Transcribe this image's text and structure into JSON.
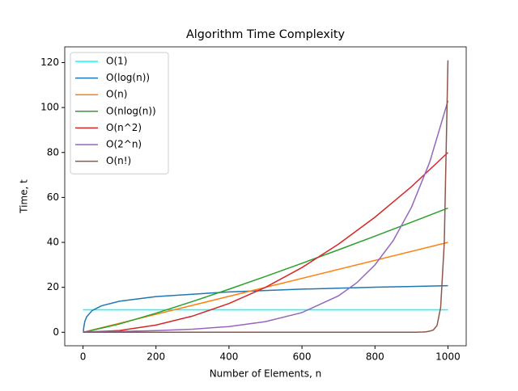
{
  "chart_data": {
    "type": "line",
    "title": "Algorithm Time Complexity",
    "x_label": "Number of Elements, n",
    "y_label": "Time, t",
    "xlim": [
      -50,
      1050
    ],
    "ylim": [
      -6,
      127
    ],
    "xticks": [
      0,
      200,
      400,
      600,
      800,
      1000
    ],
    "yticks": [
      0,
      20,
      40,
      60,
      80,
      100,
      120
    ],
    "legend": "upper left",
    "series": [
      {
        "name": "O(1)",
        "color": "#00ffff",
        "x": [
          0,
          1000
        ],
        "values": [
          10,
          10
        ]
      },
      {
        "name": "O(log(n))",
        "color": "#1f77b4",
        "x": [
          1,
          2,
          5,
          10,
          25,
          50,
          100,
          200,
          400,
          600,
          800,
          1000
        ],
        "values": [
          0,
          2.08,
          4.83,
          6.91,
          9.66,
          11.74,
          13.82,
          15.89,
          17.97,
          19.19,
          20.05,
          20.72
        ]
      },
      {
        "name": "O(n)",
        "color": "#ff7f0e",
        "x": [
          0,
          1000
        ],
        "values": [
          0,
          40
        ]
      },
      {
        "name": "O(nlog(n))",
        "color": "#2ca02c",
        "x": [
          1,
          100,
          200,
          300,
          400,
          500,
          600,
          700,
          800,
          900,
          1000
        ],
        "values": [
          0,
          3.68,
          8.48,
          13.69,
          19.17,
          24.86,
          30.7,
          36.69,
          42.78,
          48.98,
          55.26
        ]
      },
      {
        "name": "O(n^2)",
        "color": "#d62728",
        "x": [
          0,
          100,
          200,
          300,
          400,
          500,
          600,
          700,
          800,
          900,
          1000
        ],
        "values": [
          0,
          0.8,
          3.2,
          7.2,
          12.8,
          20,
          28.8,
          39.2,
          51.2,
          64.8,
          80
        ]
      },
      {
        "name": "O(2^n)",
        "color": "#9467bd",
        "x": [
          0,
          100,
          200,
          300,
          400,
          500,
          600,
          700,
          750,
          800,
          850,
          900,
          950,
          1000
        ],
        "values": [
          0.22,
          0.4,
          0.75,
          1.38,
          2.55,
          4.73,
          8.76,
          16.2,
          22,
          30,
          40.8,
          55.6,
          75.7,
          103
        ]
      },
      {
        "name": "O(n!)",
        "color": "#8c564b",
        "x": [
          0,
          910,
          920,
          930,
          940,
          950,
          960,
          970,
          980,
          990,
          1000
        ],
        "values": [
          0,
          0,
          0.05,
          0.1,
          0.2,
          0.5,
          1,
          3,
          11,
          40,
          121
        ]
      }
    ]
  }
}
